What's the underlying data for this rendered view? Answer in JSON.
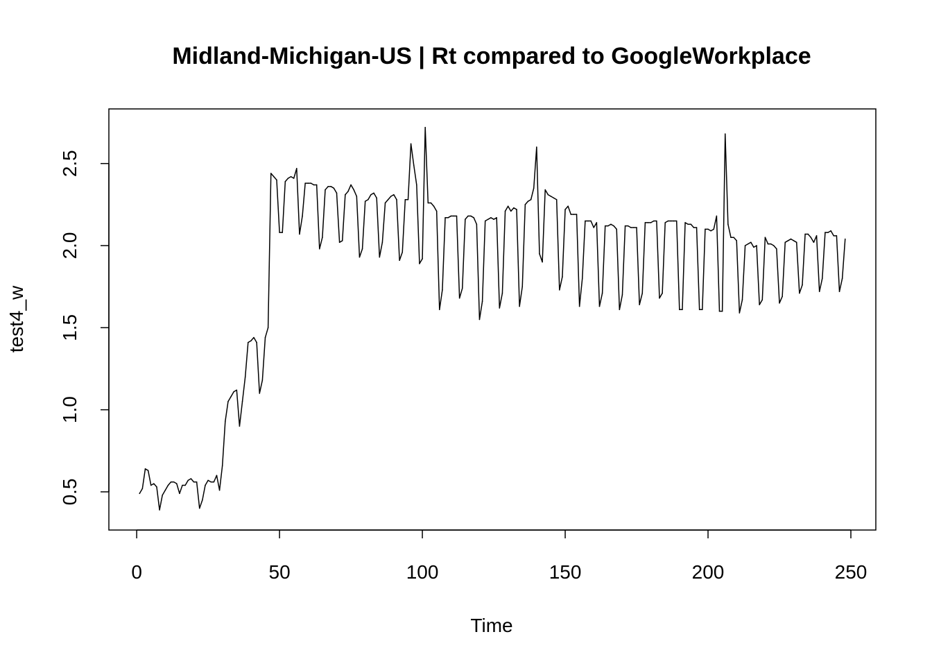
{
  "chart_data": {
    "type": "line",
    "title": "Midland-Michigan-US | Rt compared to GoogleWorkplace",
    "xlabel": "Time",
    "ylabel": "test4_w",
    "xlim": [
      1,
      248
    ],
    "ylim": [
      0.37,
      2.73
    ],
    "x_ticks": [
      0,
      50,
      100,
      150,
      200,
      250
    ],
    "y_ticks": [
      0.5,
      1.0,
      1.5,
      2.0,
      2.5
    ],
    "x_tick_labels": [
      "0",
      "50",
      "100",
      "150",
      "200",
      "250"
    ],
    "y_tick_labels": [
      "0.5",
      "1.0",
      "1.5",
      "2.0",
      "2.5"
    ],
    "grid": false,
    "line_color": "#000000",
    "series": [
      {
        "x": [
          1,
          2,
          3,
          4,
          5,
          6,
          7,
          8,
          9,
          10,
          11,
          12,
          13,
          14,
          15,
          16,
          17,
          18,
          19,
          20,
          21,
          22,
          23,
          24,
          25,
          26,
          27,
          28,
          29,
          30,
          31,
          32,
          33,
          34,
          35,
          36,
          37,
          38,
          39,
          40,
          41,
          42,
          43,
          44,
          45,
          46,
          47,
          48,
          49,
          50,
          51,
          52,
          53,
          54,
          55,
          56,
          57,
          58,
          59,
          60,
          61,
          62,
          63,
          64,
          65,
          66,
          67,
          68,
          69,
          70,
          71,
          72,
          73,
          74,
          75,
          76,
          77,
          78,
          79,
          80,
          81,
          82,
          83,
          84,
          85,
          86,
          87,
          88,
          89,
          90,
          91,
          92,
          93,
          94,
          95,
          96,
          97,
          98,
          99,
          100,
          101,
          102,
          103,
          104,
          105,
          106,
          107,
          108,
          109,
          110,
          111,
          112,
          113,
          114,
          115,
          116,
          117,
          118,
          119,
          120,
          121,
          122,
          123,
          124,
          125,
          126,
          127,
          128,
          129,
          130,
          131,
          132,
          133,
          134,
          135,
          136,
          137,
          138,
          139,
          140,
          141,
          142,
          143,
          144,
          145,
          146,
          147,
          148,
          149,
          150,
          151,
          152,
          153,
          154,
          155,
          156,
          157,
          158,
          159,
          160,
          161,
          162,
          163,
          164,
          165,
          166,
          167,
          168,
          169,
          170,
          171,
          172,
          173,
          174,
          175,
          176,
          177,
          178,
          179,
          180,
          181,
          182,
          183,
          184,
          185,
          186,
          187,
          188,
          189,
          190,
          191,
          192,
          193,
          194,
          195,
          196,
          197,
          198,
          199,
          200,
          201,
          202,
          203,
          204,
          205,
          206,
          207,
          208,
          209,
          210,
          211,
          212,
          213,
          214,
          215,
          216,
          217,
          218,
          219,
          220,
          221,
          222,
          223,
          224,
          225,
          226,
          227,
          228,
          229,
          230,
          231,
          232,
          233,
          234,
          235,
          236,
          237,
          238,
          239,
          240,
          241,
          242,
          243,
          244,
          245,
          246,
          247,
          248
        ],
        "y": [
          0.49,
          0.52,
          0.64,
          0.63,
          0.54,
          0.55,
          0.53,
          0.39,
          0.48,
          0.51,
          0.54,
          0.56,
          0.56,
          0.55,
          0.49,
          0.54,
          0.54,
          0.57,
          0.58,
          0.56,
          0.56,
          0.4,
          0.45,
          0.54,
          0.57,
          0.56,
          0.56,
          0.6,
          0.51,
          0.66,
          0.93,
          1.05,
          1.08,
          1.11,
          1.12,
          0.9,
          1.05,
          1.2,
          1.41,
          1.42,
          1.44,
          1.41,
          1.1,
          1.18,
          1.44,
          1.5,
          2.44,
          2.42,
          2.4,
          2.08,
          2.08,
          2.39,
          2.41,
          2.42,
          2.41,
          2.47,
          2.07,
          2.18,
          2.38,
          2.38,
          2.38,
          2.37,
          2.37,
          1.98,
          2.05,
          2.34,
          2.36,
          2.36,
          2.35,
          2.32,
          2.02,
          2.03,
          2.31,
          2.33,
          2.37,
          2.34,
          2.3,
          1.93,
          1.98,
          2.27,
          2.28,
          2.31,
          2.32,
          2.29,
          1.93,
          2.02,
          2.26,
          2.28,
          2.3,
          2.31,
          2.28,
          1.91,
          1.96,
          2.28,
          2.28,
          2.62,
          2.49,
          2.37,
          1.89,
          1.92,
          2.72,
          2.26,
          2.26,
          2.24,
          2.21,
          1.61,
          1.73,
          2.17,
          2.17,
          2.18,
          2.18,
          2.18,
          1.68,
          1.74,
          2.16,
          2.18,
          2.18,
          2.17,
          2.13,
          1.55,
          1.66,
          2.15,
          2.16,
          2.17,
          2.16,
          2.17,
          1.62,
          1.71,
          2.21,
          2.24,
          2.21,
          2.23,
          2.22,
          1.63,
          1.75,
          2.25,
          2.27,
          2.28,
          2.35,
          2.6,
          1.95,
          1.9,
          2.34,
          2.31,
          2.3,
          2.29,
          2.28,
          1.73,
          1.81,
          2.22,
          2.24,
          2.19,
          2.19,
          2.19,
          1.63,
          1.8,
          2.15,
          2.15,
          2.15,
          2.11,
          2.14,
          1.63,
          1.71,
          2.12,
          2.12,
          2.13,
          2.12,
          2.1,
          1.61,
          1.7,
          2.12,
          2.12,
          2.11,
          2.11,
          2.11,
          1.64,
          1.71,
          2.14,
          2.14,
          2.14,
          2.15,
          2.15,
          1.68,
          1.71,
          2.14,
          2.15,
          2.15,
          2.15,
          2.15,
          1.61,
          1.61,
          2.14,
          2.13,
          2.13,
          2.11,
          2.11,
          1.61,
          1.61,
          2.1,
          2.1,
          2.09,
          2.1,
          2.18,
          1.6,
          1.6,
          2.68,
          2.13,
          2.05,
          2.05,
          2.03,
          1.59,
          1.67,
          2.0,
          2.01,
          2.02,
          1.99,
          2.0,
          1.64,
          1.67,
          2.05,
          2.01,
          2.01,
          2.0,
          1.98,
          1.65,
          1.69,
          2.02,
          2.03,
          2.04,
          2.03,
          2.02,
          1.71,
          1.76,
          2.07,
          2.07,
          2.05,
          2.02,
          2.06,
          1.72,
          1.8,
          2.08,
          2.08,
          2.09,
          2.06,
          2.06,
          1.72,
          1.8,
          2.04
        ]
      }
    ]
  }
}
